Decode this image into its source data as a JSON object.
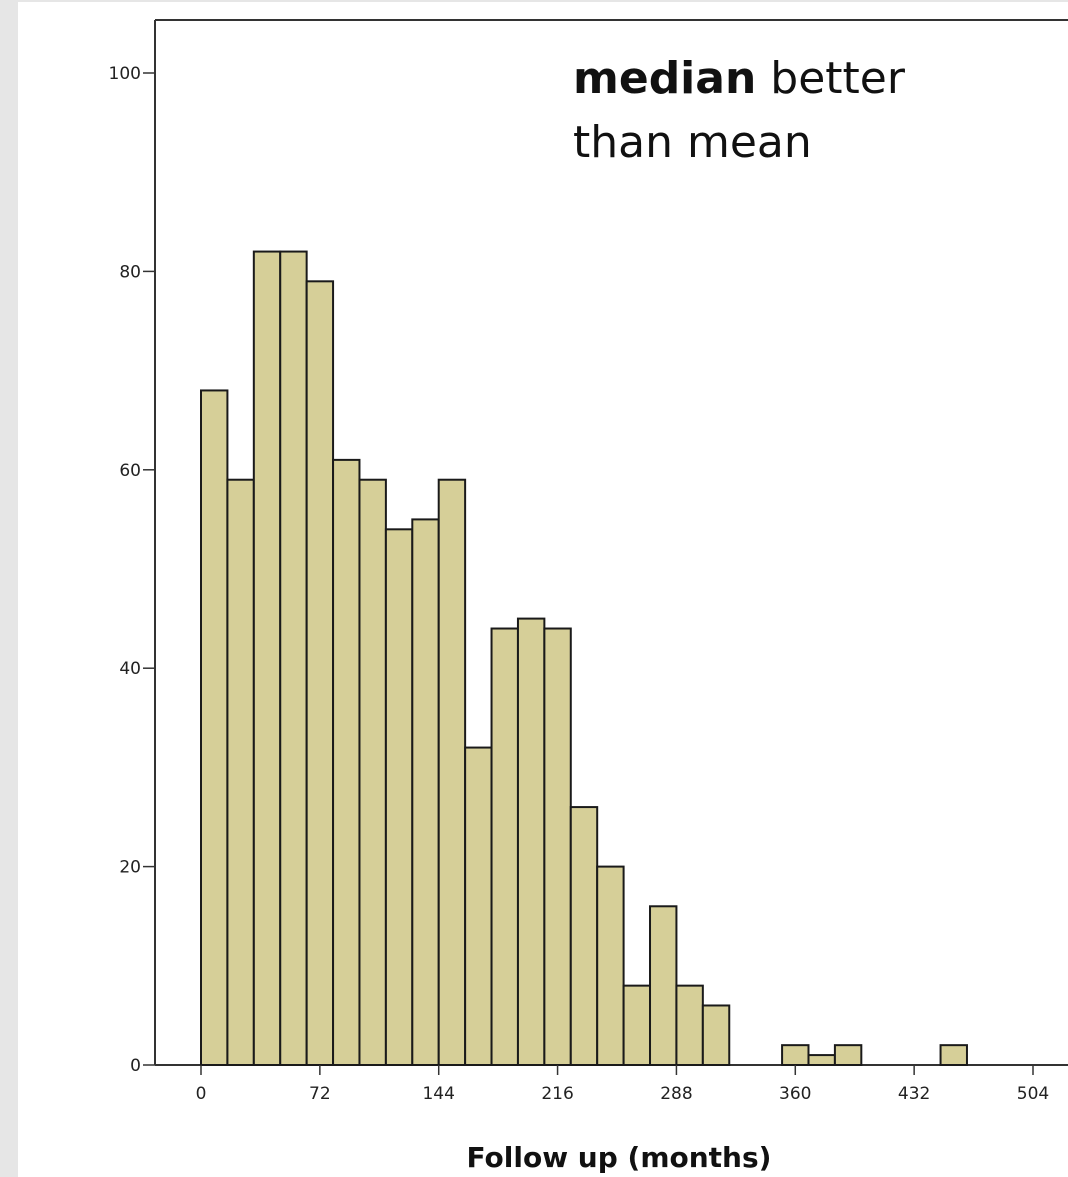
{
  "chart_data": {
    "type": "bar",
    "subtype": "histogram",
    "bin_width": 16,
    "xlabel": "Follow up (months)",
    "ylabel": "",
    "xlim": [
      -24,
      528
    ],
    "ylim": [
      0,
      105
    ],
    "x_ticks": [
      "0",
      "72",
      "144",
      "216",
      "288",
      "360",
      "432",
      "504"
    ],
    "x_tick_values": [
      0,
      72,
      144,
      216,
      288,
      360,
      432,
      504
    ],
    "y_ticks": [
      "0",
      "20",
      "40",
      "60",
      "80",
      "100"
    ],
    "y_tick_values": [
      0,
      20,
      40,
      60,
      80,
      100
    ],
    "annotation": {
      "bold": "median",
      "rest1": " better",
      "line2": "than mean"
    },
    "bins": [
      {
        "x0": 0,
        "value": 68
      },
      {
        "x0": 16,
        "value": 59
      },
      {
        "x0": 32,
        "value": 82
      },
      {
        "x0": 48,
        "value": 82
      },
      {
        "x0": 64,
        "value": 79
      },
      {
        "x0": 80,
        "value": 61
      },
      {
        "x0": 96,
        "value": 59
      },
      {
        "x0": 112,
        "value": 54
      },
      {
        "x0": 128,
        "value": 55
      },
      {
        "x0": 144,
        "value": 59
      },
      {
        "x0": 160,
        "value": 32
      },
      {
        "x0": 176,
        "value": 44
      },
      {
        "x0": 192,
        "value": 45
      },
      {
        "x0": 208,
        "value": 44
      },
      {
        "x0": 224,
        "value": 26
      },
      {
        "x0": 240,
        "value": 20
      },
      {
        "x0": 256,
        "value": 8
      },
      {
        "x0": 272,
        "value": 16
      },
      {
        "x0": 288,
        "value": 8
      },
      {
        "x0": 304,
        "value": 6
      },
      {
        "x0": 352,
        "value": 2
      },
      {
        "x0": 368,
        "value": 1
      },
      {
        "x0": 384,
        "value": 2
      },
      {
        "x0": 448,
        "value": 2
      }
    ],
    "colors": {
      "bar_fill": "#d6cf98",
      "bar_stroke": "#1a1a1a",
      "axis": "#333333"
    }
  }
}
